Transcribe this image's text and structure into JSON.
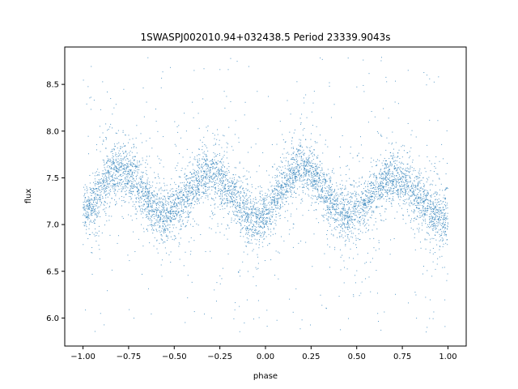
{
  "chart_data": {
    "type": "scatter",
    "title": "1SWASPJ002010.94+032438.5 Period 23339.9043s",
    "xlabel": "phase",
    "ylabel": "flux",
    "xlim": [
      -1.1,
      1.1
    ],
    "ylim": [
      5.7,
      8.9
    ],
    "xticks": [
      -1.0,
      -0.75,
      -0.5,
      -0.25,
      0.0,
      0.25,
      0.5,
      0.75,
      1.0
    ],
    "xtick_labels": [
      "−1.00",
      "−0.75",
      "−0.50",
      "−0.25",
      "0.00",
      "0.25",
      "0.50",
      "0.75",
      "1.00"
    ],
    "yticks": [
      6.0,
      6.5,
      7.0,
      7.5,
      8.0,
      8.5
    ],
    "ytick_labels": [
      "6.0",
      "6.5",
      "7.0",
      "7.5",
      "8.0",
      "8.5"
    ],
    "grid": false,
    "series": [
      {
        "color": "#1f77b4",
        "x_range": [
          -1.0,
          1.0
        ],
        "trend": {
          "phase": [
            -1.0,
            -0.8,
            -0.55,
            -0.3,
            -0.05,
            0.2,
            0.45,
            0.7,
            1.0
          ],
          "flux": [
            7.15,
            7.6,
            7.1,
            7.55,
            7.05,
            7.6,
            7.1,
            7.5,
            7.05
          ]
        },
        "flux_outlier_range": [
          5.85,
          8.8
        ]
      }
    ]
  }
}
